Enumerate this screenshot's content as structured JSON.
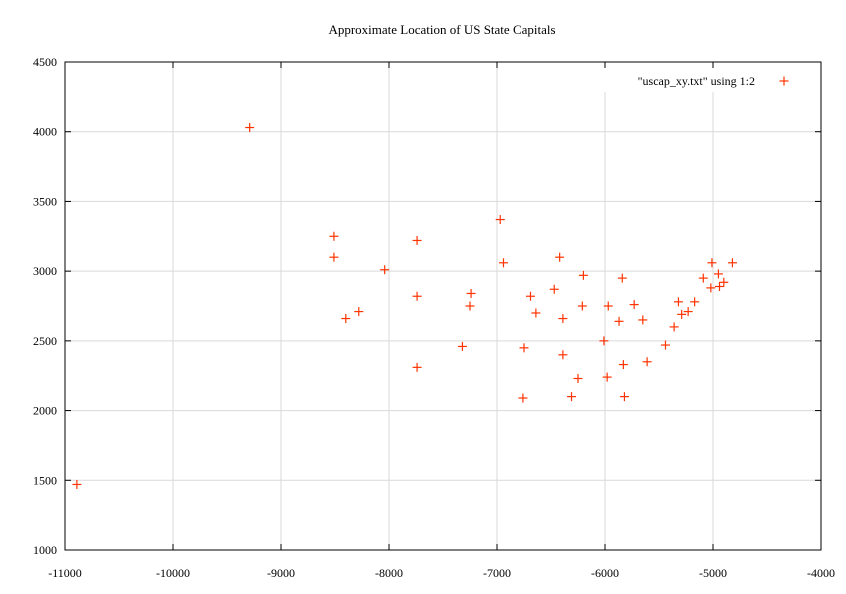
{
  "chart_data": {
    "type": "scatter",
    "title": "Approximate Location of US State Capitals",
    "xlim": [
      -11000,
      -4000
    ],
    "ylim": [
      1000,
      4500
    ],
    "x_ticks": [
      -11000,
      -10000,
      -9000,
      -8000,
      -7000,
      -6000,
      -5000,
      -4000
    ],
    "y_ticks": [
      1000,
      1500,
      2000,
      2500,
      3000,
      3500,
      4000,
      4500
    ],
    "x_tick_labels": [
      "-11000",
      "-10000",
      "-9000",
      "-8000",
      "-7000",
      "-6000",
      "-5000",
      "-4000"
    ],
    "y_tick_labels": [
      "1000",
      "1500",
      "2000",
      "2500",
      "3000",
      "3500",
      "4000",
      "4500"
    ],
    "grid": true,
    "legend_position": "top-right",
    "series": [
      {
        "name": "\"uscap_xy.txt\" using 1:2",
        "color": "#ff3300",
        "marker": "plus",
        "points": [
          [
            -10890,
            1470
          ],
          [
            -9290,
            4030
          ],
          [
            -8510,
            3250
          ],
          [
            -8510,
            3100
          ],
          [
            -8400,
            2660
          ],
          [
            -8280,
            2710
          ],
          [
            -8040,
            3010
          ],
          [
            -7740,
            3220
          ],
          [
            -7740,
            2820
          ],
          [
            -7740,
            2310
          ],
          [
            -7320,
            2460
          ],
          [
            -7240,
            2840
          ],
          [
            -7250,
            2750
          ],
          [
            -6970,
            3370
          ],
          [
            -6940,
            3060
          ],
          [
            -6750,
            2450
          ],
          [
            -6760,
            2090
          ],
          [
            -6690,
            2820
          ],
          [
            -6640,
            2700
          ],
          [
            -6470,
            2870
          ],
          [
            -6420,
            3100
          ],
          [
            -6390,
            2660
          ],
          [
            -6390,
            2400
          ],
          [
            -6310,
            2100
          ],
          [
            -6250,
            2230
          ],
          [
            -6200,
            2970
          ],
          [
            -6210,
            2750
          ],
          [
            -6010,
            2500
          ],
          [
            -5980,
            2240
          ],
          [
            -5970,
            2750
          ],
          [
            -5870,
            2640
          ],
          [
            -5840,
            2950
          ],
          [
            -5830,
            2330
          ],
          [
            -5820,
            2100
          ],
          [
            -5730,
            2760
          ],
          [
            -5650,
            2650
          ],
          [
            -5610,
            2350
          ],
          [
            -5440,
            2470
          ],
          [
            -5360,
            2600
          ],
          [
            -5320,
            2780
          ],
          [
            -5290,
            2690
          ],
          [
            -5230,
            2710
          ],
          [
            -5170,
            2780
          ],
          [
            -5090,
            2950
          ],
          [
            -5020,
            2880
          ],
          [
            -5010,
            3060
          ],
          [
            -4950,
            2980
          ],
          [
            -4940,
            2890
          ],
          [
            -4900,
            2920
          ],
          [
            -4820,
            3060
          ]
        ]
      }
    ]
  }
}
